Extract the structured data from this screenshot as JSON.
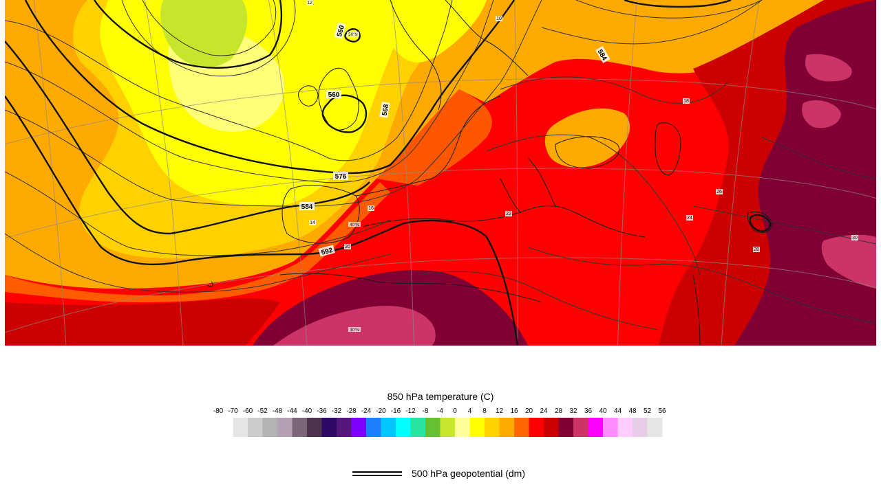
{
  "map": {
    "contour_labels": [
      "560",
      "560",
      "568",
      "576",
      "584",
      "584",
      "592"
    ],
    "small_labels": [
      "12",
      "10",
      "14",
      "16",
      "18",
      "20",
      "22",
      "24",
      "26",
      "28",
      "30"
    ],
    "latitude_labels": [
      "50°N",
      "40°N",
      "30°N"
    ]
  },
  "legend": {
    "title": "850 hPa temperature (C)",
    "ticks": [
      "-80",
      "-70",
      "-60",
      "-52",
      "-48",
      "-44",
      "-40",
      "-36",
      "-32",
      "-28",
      "-24",
      "-20",
      "-16",
      "-12",
      "-8",
      "-4",
      "0",
      "4",
      "8",
      "12",
      "16",
      "20",
      "24",
      "28",
      "32",
      "36",
      "40",
      "44",
      "48",
      "52",
      "56"
    ],
    "colors": [
      "#e6e6e6",
      "#cccccc",
      "#b3b3b3",
      "#b3a1b3",
      "#7a677a",
      "#4d334d",
      "#2d0a66",
      "#57167e",
      "#8000ff",
      "#1c80ff",
      "#00c8ff",
      "#00ffff",
      "#26e5a0",
      "#66c033",
      "#c6e62e",
      "#ffff99",
      "#ffff00",
      "#ffd100",
      "#ffaa00",
      "#ff6600",
      "#ff0000",
      "#cc0000",
      "#800033",
      "#cc3366",
      "#ff00ff",
      "#ff8cff",
      "#ffccff",
      "#e6cce6",
      "#e6e6e6"
    ],
    "geopotential_label": "500 hPa geopotential (dm)"
  },
  "colors": {
    "yellow": "#ffff00",
    "light_yellow": "#ffff99",
    "amber": "#ffd100",
    "orange": "#ffaa00",
    "dark_orange": "#ff6600",
    "red": "#ff0000",
    "dark_red": "#cc0000",
    "maroon": "#800033",
    "pink": "#cc3366",
    "green": "#c6e62e"
  }
}
